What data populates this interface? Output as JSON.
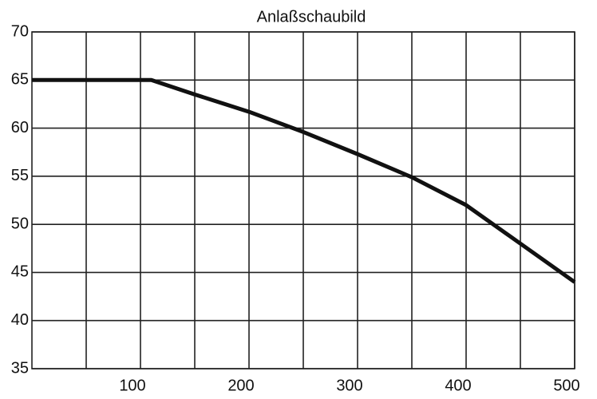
{
  "chart_data": {
    "type": "line",
    "title": "Anlaßschaubild",
    "x": [
      0,
      110,
      150,
      200,
      250,
      300,
      350,
      400,
      450,
      500
    ],
    "series": [
      {
        "color": "#111111",
        "values": [
          65,
          65,
          63.5,
          61.7,
          59.6,
          57.3,
          54.9,
          52,
          48,
          44
        ]
      }
    ],
    "xlim": [
      0,
      500
    ],
    "xticks": [
      100,
      200,
      300,
      400,
      500
    ],
    "x_minor_ticks": [
      50,
      150,
      250,
      350,
      450
    ],
    "ylim": [
      35,
      70
    ],
    "yticks": [
      35,
      40,
      45,
      50,
      55,
      60,
      65,
      70
    ],
    "grid": true
  }
}
